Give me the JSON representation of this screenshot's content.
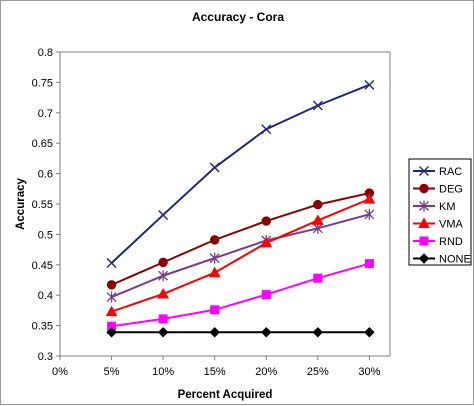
{
  "chart_data": {
    "type": "line",
    "title": "Accuracy - Cora",
    "xlabel": "Percent Acquired",
    "ylabel": "Accuracy",
    "categories": [
      "0%",
      "5%",
      "10%",
      "15%",
      "20%",
      "25%",
      "30%"
    ],
    "ylim": [
      0.3,
      0.8
    ],
    "yticks": [
      "0.3",
      "0.35",
      "0.4",
      "0.45",
      "0.5",
      "0.55",
      "0.6",
      "0.65",
      "0.7",
      "0.75",
      "0.8"
    ],
    "grid": false,
    "legend_position": "right",
    "series": [
      {
        "name": "RAC",
        "color": "#1f2a7a",
        "marker": "x",
        "values": [
          null,
          0.453,
          0.532,
          0.61,
          0.673,
          0.712,
          0.746
        ]
      },
      {
        "name": "DEG",
        "color": "#8b0000",
        "marker": "circle",
        "values": [
          null,
          0.417,
          0.454,
          0.491,
          0.522,
          0.549,
          0.568
        ]
      },
      {
        "name": "KM",
        "color": "#7a3b8c",
        "marker": "star",
        "values": [
          null,
          0.397,
          0.432,
          0.461,
          0.49,
          0.51,
          0.533
        ]
      },
      {
        "name": "VMA",
        "color": "#ff0000",
        "marker": "triangle",
        "values": [
          null,
          0.373,
          0.402,
          0.437,
          0.486,
          0.523,
          0.558
        ]
      },
      {
        "name": "RND",
        "color": "#ff00ff",
        "marker": "square",
        "values": [
          null,
          0.349,
          0.361,
          0.376,
          0.401,
          0.428,
          0.452
        ]
      },
      {
        "name": "NONE",
        "color": "#000000",
        "marker": "diamond",
        "values": [
          null,
          0.339,
          0.339,
          0.339,
          0.339,
          0.339,
          0.339
        ]
      }
    ]
  }
}
